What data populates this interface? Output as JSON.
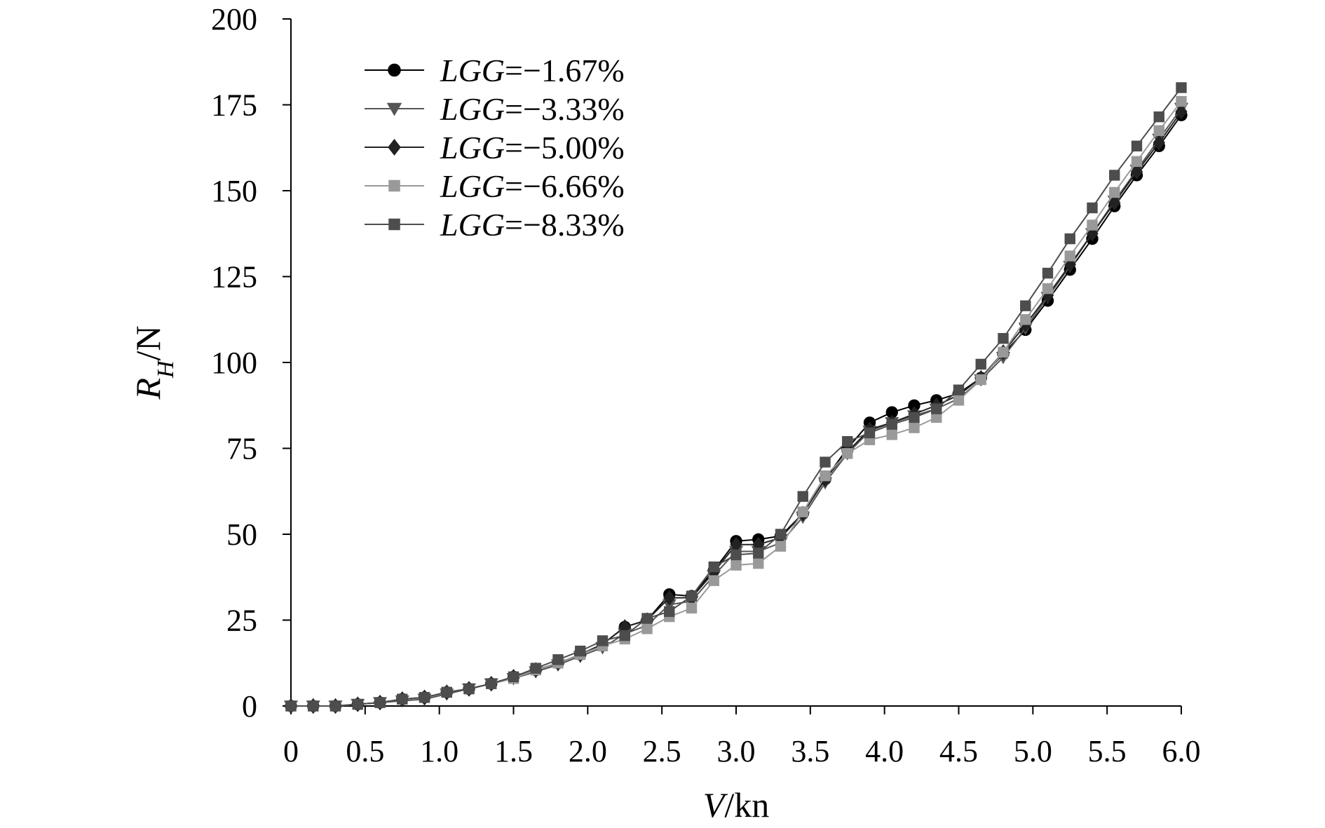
{
  "chart_data": {
    "type": "line",
    "xlabel_var": "V",
    "xlabel_unit": "/kn",
    "ylabel_var": "R",
    "ylabel_sub": "H",
    "ylabel_unit": "/N",
    "xlim": [
      0,
      6.0
    ],
    "ylim": [
      0,
      200
    ],
    "xticks": [
      "0",
      "0.5",
      "1.0",
      "1.5",
      "2.0",
      "2.5",
      "3.0",
      "3.5",
      "4.0",
      "4.5",
      "5.0",
      "5.5",
      "6.0"
    ],
    "yticks": [
      "0",
      "25",
      "50",
      "75",
      "100",
      "125",
      "150",
      "175",
      "200"
    ],
    "grid": false,
    "legend_position": "top-left",
    "x": [
      0,
      0.15,
      0.3,
      0.45,
      0.6,
      0.75,
      0.9,
      1.05,
      1.2,
      1.35,
      1.5,
      1.65,
      1.8,
      1.95,
      2.1,
      2.25,
      2.4,
      2.55,
      2.7,
      2.85,
      3.0,
      3.15,
      3.3,
      3.45,
      3.6,
      3.75,
      3.9,
      4.05,
      4.2,
      4.35,
      4.5,
      4.65,
      4.8,
      4.95,
      5.1,
      5.25,
      5.4,
      5.55,
      5.7,
      5.85,
      6.0
    ],
    "series": [
      {
        "prefix": "LGG",
        "suffix": "=−1.67%",
        "marker": "circle",
        "color": "#000000",
        "values": [
          0,
          0,
          0,
          0.5,
          1.0,
          2.0,
          2.5,
          4.0,
          5.0,
          6.5,
          8.5,
          10.5,
          12.5,
          15.0,
          18.0,
          23.0,
          25.0,
          32.5,
          32.0,
          39.5,
          48.0,
          48.5,
          49.5,
          56.0,
          66.0,
          75.0,
          82.5,
          85.5,
          87.5,
          89.0,
          91.0,
          95.5,
          102.5,
          109.5,
          118.0,
          127.0,
          136.0,
          145.5,
          154.5,
          163.0,
          172.0
        ]
      },
      {
        "prefix": "LGG",
        "suffix": "=−3.33%",
        "marker": "triangle-down",
        "color": "#555555",
        "values": [
          0,
          0,
          0,
          0.5,
          1.0,
          1.5,
          2.0,
          3.5,
          5.0,
          6.5,
          8.0,
          10.0,
          12.0,
          14.5,
          17.0,
          21.0,
          23.5,
          29.5,
          30.5,
          38.0,
          45.0,
          45.0,
          47.5,
          55.0,
          65.0,
          73.5,
          80.0,
          82.5,
          84.5,
          86.5,
          89.5,
          95.0,
          101.5,
          110.0,
          119.0,
          128.0,
          137.5,
          147.0,
          156.0,
          165.0,
          174.0
        ]
      },
      {
        "prefix": "LGG",
        "suffix": "=−5.00%",
        "marker": "diamond",
        "color": "#222222",
        "values": [
          0,
          0,
          0,
          0.5,
          1.0,
          2.0,
          2.5,
          4.0,
          5.0,
          6.5,
          8.5,
          10.5,
          12.5,
          15.0,
          18.0,
          23.0,
          25.0,
          31.5,
          31.5,
          39.0,
          47.0,
          47.0,
          49.0,
          56.0,
          66.0,
          74.0,
          80.5,
          82.5,
          85.0,
          87.5,
          90.5,
          95.5,
          103.0,
          111.0,
          119.5,
          128.5,
          137.5,
          146.5,
          155.5,
          164.0,
          173.0
        ]
      },
      {
        "prefix": "LGG",
        "suffix": "=−6.66%",
        "marker": "square",
        "color": "#999999",
        "values": [
          0,
          0,
          0,
          0.5,
          1.0,
          2.0,
          2.5,
          4.0,
          5.0,
          6.5,
          8.0,
          10.5,
          12.5,
          15.0,
          17.5,
          19.5,
          22.5,
          26.0,
          28.5,
          36.5,
          41.0,
          41.5,
          46.5,
          56.5,
          67.0,
          73.5,
          77.5,
          79.0,
          81.0,
          84.0,
          89.0,
          95.0,
          103.0,
          112.5,
          121.5,
          131.0,
          140.0,
          149.5,
          158.5,
          167.5,
          176.0
        ]
      },
      {
        "prefix": "LGG",
        "suffix": "=−8.33%",
        "marker": "square",
        "color": "#4d4d4d",
        "values": [
          0,
          0,
          0,
          0.5,
          1.0,
          2.0,
          2.5,
          4.0,
          5.0,
          6.5,
          8.5,
          11.0,
          13.5,
          16.0,
          19.0,
          20.5,
          25.5,
          27.5,
          32.0,
          40.5,
          44.0,
          44.5,
          50.0,
          61.0,
          71.0,
          77.0,
          79.5,
          82.0,
          84.0,
          86.5,
          92.0,
          99.5,
          107.0,
          116.5,
          126.0,
          136.0,
          145.0,
          154.5,
          163.0,
          171.5,
          180.0
        ]
      }
    ]
  }
}
